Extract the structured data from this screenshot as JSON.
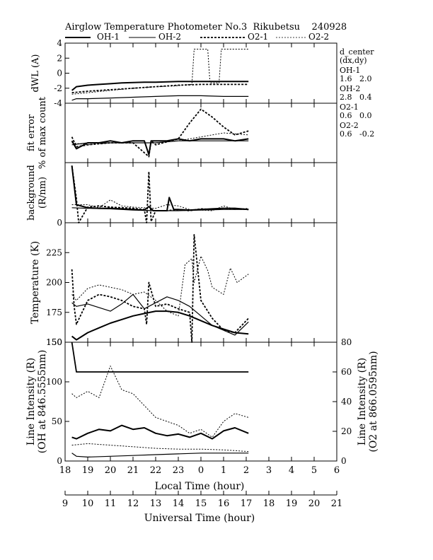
{
  "header": {
    "title": "Airglow Temperature Photometer No.3  Rikubetsu    240928"
  },
  "legend": {
    "items": [
      {
        "name": "OH-1",
        "style": "solid-thick"
      },
      {
        "name": "OH-2",
        "style": "solid-thin"
      },
      {
        "name": "O2-1",
        "style": "dashed-thick"
      },
      {
        "name": "O2-2",
        "style": "dashed-thin"
      }
    ]
  },
  "side_info": {
    "title": "d_center",
    "subtitle": "(dx,dy)",
    "entries": [
      {
        "name": "OH-1",
        "value": "1.6   2.0"
      },
      {
        "name": "OH-2",
        "value": "2.8   0.4"
      },
      {
        "name": "O2-1",
        "value": "0.6   0.0"
      },
      {
        "name": "O2-2",
        "value": "0.6   -0.2"
      }
    ]
  },
  "chart_data": [
    {
      "type": "line",
      "ylabel": "dWL (A)",
      "ylim": [
        -4,
        4
      ],
      "yticks": [
        "4",
        "2",
        "0",
        "-2",
        "-4"
      ],
      "x_axis": "local time (hour)",
      "series": [
        {
          "name": "OH-1",
          "x": [
            18.3,
            18.5,
            19,
            19.5,
            20,
            20.5,
            21,
            21.5,
            22,
            22.5,
            23,
            23.5,
            24,
            24.5,
            25,
            25.5,
            26.1
          ],
          "y": [
            -2.3,
            -1.8,
            -1.6,
            -1.5,
            -1.4,
            -1.3,
            -1.25,
            -1.2,
            -1.2,
            -1.15,
            -1.1,
            -1.1,
            -1.1,
            -1.1,
            -1.1,
            -1.1,
            -1.1
          ]
        },
        {
          "name": "OH-2",
          "x": [
            18.3,
            18.5,
            19,
            20,
            21,
            22,
            23,
            24,
            25,
            26.1
          ],
          "y": [
            -3.6,
            -3.4,
            -3.4,
            -3.3,
            -3.2,
            -3.1,
            -3.0,
            -3.0,
            -3.1,
            -3.1
          ]
        },
        {
          "name": "O2-1",
          "x": [
            18.3,
            19,
            20,
            21,
            22,
            23,
            24,
            25,
            26.1
          ],
          "y": [
            -2.6,
            -2.4,
            -2.2,
            -2.0,
            -1.8,
            -1.6,
            -1.5,
            -1.5,
            -1.5
          ]
        },
        {
          "name": "O2-2",
          "x": [
            18.3,
            19,
            20,
            21,
            22,
            22.8,
            23.6,
            23.7,
            24.3,
            24.4,
            24.8,
            24.9,
            25.5,
            25.6,
            26.1
          ],
          "y": [
            -2.8,
            -2.6,
            -2.3,
            -2.0,
            -1.8,
            -1.7,
            -1.5,
            3.2,
            3.2,
            -1.3,
            -1.3,
            3.2,
            3.2,
            3.2,
            3.2
          ]
        }
      ]
    },
    {
      "type": "line",
      "ylabel": "fit error",
      "ylabel2": "% of max count",
      "ylim": [
        0,
        3
      ],
      "yticks": [],
      "x_axis": "local time (hour)",
      "series": [
        {
          "name": "OH-1",
          "x": [
            18.3,
            18.5,
            19,
            19.5,
            20,
            20.5,
            21,
            21.5,
            21.7,
            21.8,
            22,
            22.5,
            23,
            23.5,
            24,
            24.5,
            25,
            25.5,
            26.1
          ],
          "y": [
            1.1,
            0.7,
            1.0,
            1.0,
            1.1,
            1.0,
            1.1,
            1.1,
            0.4,
            1.1,
            1.1,
            1.1,
            1.2,
            1.1,
            1.2,
            1.2,
            1.2,
            1.1,
            1.2
          ]
        },
        {
          "name": "OH-2",
          "x": [
            18.3,
            19,
            20,
            21,
            22,
            23,
            24,
            25,
            26.1
          ],
          "y": [
            0.9,
            1.0,
            1.0,
            1.0,
            1.0,
            1.1,
            1.1,
            1.1,
            1.1
          ]
        },
        {
          "name": "O2-1",
          "x": [
            18.3,
            18.5,
            19,
            20,
            21,
            21.7,
            21.8,
            22,
            23,
            23.5,
            24,
            24.5,
            25,
            25.5,
            26.1
          ],
          "y": [
            1.3,
            0.8,
            0.9,
            1.0,
            1.0,
            0.3,
            1.1,
            0.9,
            1.2,
            2.0,
            2.7,
            2.3,
            1.8,
            1.4,
            1.6
          ]
        },
        {
          "name": "O2-2",
          "x": [
            18.3,
            19,
            20,
            21,
            22,
            23,
            24,
            25,
            26.1
          ],
          "y": [
            1.0,
            0.9,
            1.0,
            1.0,
            1.0,
            1.1,
            1.3,
            1.5,
            1.4
          ]
        }
      ]
    },
    {
      "type": "line",
      "ylabel": "background",
      "ylabel2": "(R/nm)",
      "ylim": [
        0,
        100
      ],
      "yticks": [
        "0"
      ],
      "x_axis": "local time (hour)",
      "series": [
        {
          "name": "OH-1",
          "x": [
            18.3,
            18.5,
            19,
            19.5,
            20,
            20.5,
            21,
            21.5,
            21.7,
            21.9,
            22,
            22.5,
            22.6,
            22.8,
            23,
            23.5,
            24,
            24.5,
            25,
            25.5,
            26.1
          ],
          "y": [
            95,
            30,
            25,
            24,
            24,
            23,
            22,
            21,
            27,
            20,
            20,
            20,
            42,
            22,
            22,
            21,
            22,
            23,
            24,
            24,
            22
          ]
        },
        {
          "name": "OH-2",
          "x": [
            18.3,
            19,
            20,
            21,
            22,
            23,
            24,
            25,
            26.1
          ],
          "y": [
            25,
            24,
            23,
            21,
            20,
            20,
            21,
            22,
            22
          ]
        },
        {
          "name": "O2-1",
          "x": [
            18.3,
            18.5,
            18.6,
            19,
            19.5,
            20,
            20.5,
            21,
            21.5,
            21.6,
            21.7,
            21.8,
            22,
            22.5,
            23,
            23.5,
            24,
            24.5,
            25,
            25.5,
            26.1
          ],
          "y": [
            95,
            40,
            0,
            26,
            28,
            26,
            25,
            24,
            22,
            0,
            85,
            2,
            20,
            20,
            22,
            20,
            23,
            22,
            24,
            23,
            22
          ]
        },
        {
          "name": "O2-2",
          "x": [
            18.3,
            19,
            19.5,
            20,
            20.5,
            21,
            21.5,
            22,
            22.5,
            23,
            23.5,
            24,
            24.5,
            25,
            25.5,
            26.1
          ],
          "y": [
            30,
            30,
            25,
            38,
            28,
            26,
            25,
            24,
            30,
            28,
            22,
            21,
            20,
            28,
            22,
            24
          ]
        }
      ]
    },
    {
      "type": "line",
      "ylabel": "Temperature (K)",
      "ylim": [
        150,
        250
      ],
      "yticks": [
        "225",
        "200",
        "175",
        "150"
      ],
      "x_axis": "local time (hour)",
      "series": [
        {
          "name": "OH-1",
          "x": [
            18.3,
            18.5,
            19,
            19.5,
            20,
            20.5,
            21,
            21.5,
            22,
            22.5,
            23,
            23.5,
            24,
            24.5,
            25,
            25.5,
            26.1
          ],
          "y": [
            155,
            152,
            158,
            162,
            166,
            169,
            172,
            174,
            176,
            176,
            175,
            172,
            168,
            164,
            161,
            158,
            157
          ]
        },
        {
          "name": "OH-2",
          "x": [
            18.3,
            18.5,
            19,
            20,
            20.5,
            21,
            21.5,
            22,
            22.5,
            23,
            23.5,
            24,
            24.5,
            25,
            25.5,
            26.1
          ],
          "y": [
            183,
            180,
            182,
            176,
            182,
            190,
            178,
            183,
            188,
            185,
            180,
            172,
            164,
            160,
            156,
            167
          ]
        },
        {
          "name": "O2-1",
          "x": [
            18.3,
            18.4,
            18.5,
            19,
            19.5,
            20,
            20.5,
            21,
            21.5,
            21.6,
            21.7,
            22,
            22.5,
            23,
            23.5,
            23.6,
            23.7,
            24,
            24.5,
            25,
            25.5,
            26.1
          ],
          "y": [
            211,
            180,
            165,
            185,
            190,
            188,
            185,
            180,
            178,
            165,
            200,
            180,
            182,
            178,
            175,
            150,
            240,
            185,
            170,
            160,
            158,
            170
          ]
        },
        {
          "name": "O2-2",
          "x": [
            18.3,
            18.5,
            19,
            19.5,
            20,
            20.5,
            21,
            21.5,
            22,
            22.5,
            23,
            23.3,
            23.6,
            23.7,
            24,
            24.3,
            24.5,
            25,
            25.3,
            25.6,
            26.1
          ],
          "y": [
            190,
            185,
            195,
            198,
            196,
            194,
            190,
            192,
            185,
            176,
            172,
            215,
            220,
            200,
            222,
            210,
            196,
            190,
            212,
            200,
            207
          ]
        }
      ]
    },
    {
      "type": "line",
      "ylabel": "Line Intensity (R)",
      "ylabel2": "(OH at 846.5555nm)",
      "ylabel_right": "Line Intensity (R)",
      "ylabel_right2": "(O2 at 866.0595nm)",
      "ylim": [
        0,
        150
      ],
      "ylim_right": [
        0,
        80
      ],
      "yticks": [
        "0",
        "50",
        "100",
        "150"
      ],
      "yticks_right": [
        "0",
        "20",
        "40",
        "60",
        "80"
      ],
      "x_axis": "local time (hour)",
      "series": [
        {
          "name": "OH-1",
          "x": [
            18.3,
            18.5,
            19,
            19.5,
            20,
            20.5,
            21,
            21.5,
            22,
            22.5,
            23,
            23.5,
            24,
            24.5,
            25,
            25.5,
            26.1
          ],
          "y": [
            30,
            28,
            35,
            40,
            38,
            45,
            40,
            42,
            35,
            32,
            34,
            30,
            35,
            28,
            38,
            42,
            35
          ]
        },
        {
          "name": "OH-2",
          "x": [
            18.3,
            18.5,
            19,
            20,
            21,
            22,
            23,
            24,
            25,
            26.1
          ],
          "y": [
            10,
            6,
            5,
            6,
            7,
            8,
            9,
            10,
            10,
            10
          ]
        },
        {
          "name": "O2-1 (right axis)",
          "x": [
            18.3,
            18.5,
            26.1
          ],
          "y": [
            80,
            60,
            60
          ]
        },
        {
          "name": "O2-2",
          "x": [
            18.3,
            18.5,
            19,
            19.5,
            20,
            20.5,
            21,
            21.5,
            22,
            22.5,
            23,
            23.5,
            24,
            24.5,
            25,
            25.5,
            26.1
          ],
          "y": [
            85,
            80,
            88,
            80,
            120,
            90,
            85,
            70,
            55,
            50,
            45,
            35,
            40,
            30,
            50,
            60,
            55
          ]
        },
        {
          "name": "O2-2b",
          "x": [
            18.3,
            19,
            20,
            21,
            22,
            23,
            24,
            25,
            26.1
          ],
          "y": [
            20,
            22,
            20,
            18,
            16,
            15,
            15,
            14,
            12
          ]
        }
      ]
    }
  ],
  "axes": {
    "local": {
      "label": "Local Time (hour)",
      "ticks": [
        "18",
        "19",
        "20",
        "21",
        "22",
        "23",
        "0",
        "1",
        "2",
        "3",
        "4",
        "5",
        "6"
      ]
    },
    "universal": {
      "label": "Universal Time (hour)",
      "ticks": [
        "9",
        "10",
        "11",
        "12",
        "13",
        "14",
        "15",
        "16",
        "17",
        "18",
        "19",
        "20",
        "21"
      ]
    }
  }
}
